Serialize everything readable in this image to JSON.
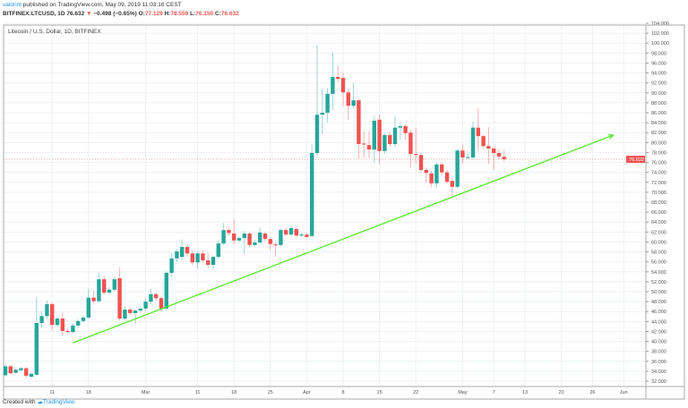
{
  "header": {
    "author": "valdrint",
    "published": "published on TradingView.com, May 09, 2019 11:03:16 CEST",
    "symbol": "BITFINEX:LTCUSD, 1D",
    "last": "76.632",
    "change": "−0.498 (−0.65%)",
    "o_label": "O:",
    "o": "77.129",
    "h_label": "H:",
    "h": "78.559",
    "l_label": "L:",
    "l": "76.150",
    "c_label": "C:",
    "c": "76.632"
  },
  "legend": "Litecoin / U.S. Dollar, 1D, BITFINEX",
  "footer": {
    "created": "Created with",
    "brand": "TradingView"
  },
  "colors": {
    "up": "#26a69a",
    "down": "#ef5350",
    "trendline": "#55e82a",
    "grid": "#eef1f6",
    "price_badge": "#ef5350"
  },
  "chart_data": {
    "type": "candlestick",
    "title": "Litecoin / U.S. Dollar, 1D, BITFINEX",
    "ylim": [
      32,
      104
    ],
    "ytick_step": 2,
    "grid": true,
    "last_price_label": "76.632",
    "xticks": [
      [
        "2019-02-11",
        "11"
      ],
      [
        "2019-02-18",
        "18"
      ],
      [
        "2019-03-01",
        "Mar"
      ],
      [
        "2019-03-11",
        "11"
      ],
      [
        "2019-03-18",
        "18"
      ],
      [
        "2019-03-25",
        "25"
      ],
      [
        "2019-04-01",
        "Apr"
      ],
      [
        "2019-04-08",
        "8"
      ],
      [
        "2019-04-15",
        "15"
      ],
      [
        "2019-04-22",
        "22"
      ],
      [
        "2019-05-01",
        "May"
      ],
      [
        "2019-05-07",
        "7"
      ],
      [
        "2019-05-13",
        "13"
      ],
      [
        "2019-05-20",
        "20"
      ],
      [
        "2019-05-26",
        "26"
      ],
      [
        "2019-06-01",
        "Jun"
      ]
    ],
    "xlim": [
      "2019-02-02",
      "2019-06-05"
    ],
    "trendline": {
      "start": [
        "2019-02-15",
        39.7
      ],
      "end": [
        "2019-05-30",
        81.5
      ],
      "arrow": true
    },
    "candles_fields": [
      "date",
      "open",
      "high",
      "low",
      "close"
    ],
    "candles": [
      [
        "2019-02-02",
        33.2,
        35.4,
        33.0,
        35.0
      ],
      [
        "2019-02-03",
        35.0,
        35.3,
        33.4,
        33.6
      ],
      [
        "2019-02-04",
        33.7,
        34.5,
        33.5,
        34.3
      ],
      [
        "2019-02-05",
        34.2,
        34.8,
        34.0,
        34.6
      ],
      [
        "2019-02-06",
        34.6,
        34.8,
        32.6,
        33.1
      ],
      [
        "2019-02-07",
        32.9,
        33.7,
        32.7,
        33.5
      ],
      [
        "2019-02-08",
        33.3,
        48.9,
        33.1,
        43.7
      ],
      [
        "2019-02-09",
        43.7,
        46.0,
        42.8,
        45.1
      ],
      [
        "2019-02-10",
        45.1,
        48.2,
        44.6,
        47.5
      ],
      [
        "2019-02-11",
        47.5,
        47.8,
        42.2,
        43.3
      ],
      [
        "2019-02-12",
        43.3,
        45.0,
        42.9,
        44.6
      ],
      [
        "2019-02-13",
        44.6,
        45.8,
        41.2,
        42.1
      ],
      [
        "2019-02-14",
        42.1,
        42.6,
        41.5,
        41.9
      ],
      [
        "2019-02-15",
        41.9,
        43.6,
        41.6,
        43.2
      ],
      [
        "2019-02-16",
        43.2,
        44.5,
        42.9,
        44.1
      ],
      [
        "2019-02-17",
        44.1,
        45.1,
        43.8,
        44.8
      ],
      [
        "2019-02-18",
        44.8,
        50.6,
        44.5,
        48.8
      ],
      [
        "2019-02-19",
        48.8,
        50.2,
        47.6,
        48.1
      ],
      [
        "2019-02-20",
        48.1,
        53.8,
        47.8,
        52.5
      ],
      [
        "2019-02-21",
        52.5,
        53.2,
        49.4,
        49.8
      ],
      [
        "2019-02-22",
        49.8,
        50.9,
        49.4,
        50.4
      ],
      [
        "2019-02-23",
        50.4,
        53.0,
        50.1,
        52.5
      ],
      [
        "2019-02-24",
        52.7,
        54.9,
        44.2,
        44.6
      ],
      [
        "2019-02-25",
        44.6,
        47.0,
        44.2,
        46.4
      ],
      [
        "2019-02-26",
        46.4,
        46.8,
        45.3,
        45.7
      ],
      [
        "2019-02-27",
        45.7,
        46.5,
        43.6,
        46.2
      ],
      [
        "2019-02-28",
        46.2,
        47.0,
        45.8,
        46.6
      ],
      [
        "2019-03-01",
        46.6,
        48.6,
        46.2,
        48.0
      ],
      [
        "2019-03-02",
        48.0,
        50.6,
        47.5,
        49.5
      ],
      [
        "2019-03-03",
        49.5,
        49.9,
        48.2,
        48.7
      ],
      [
        "2019-03-04",
        48.7,
        49.0,
        46.0,
        46.6
      ],
      [
        "2019-03-05",
        46.6,
        54.2,
        46.3,
        53.8
      ],
      [
        "2019-03-06",
        53.8,
        57.6,
        53.0,
        56.7
      ],
      [
        "2019-03-07",
        56.7,
        58.6,
        56.0,
        58.1
      ],
      [
        "2019-03-08",
        57.0,
        60.5,
        56.4,
        59.0
      ],
      [
        "2019-03-09",
        59.0,
        59.6,
        57.2,
        57.7
      ],
      [
        "2019-03-10",
        57.7,
        58.3,
        55.4,
        55.9
      ],
      [
        "2019-03-11",
        55.9,
        58.2,
        54.6,
        57.7
      ],
      [
        "2019-03-12",
        57.7,
        58.4,
        55.8,
        56.3
      ],
      [
        "2019-03-13",
        56.3,
        57.8,
        54.8,
        55.4
      ],
      [
        "2019-03-14",
        55.4,
        57.3,
        54.6,
        57.0
      ],
      [
        "2019-03-15",
        57.0,
        60.3,
        56.7,
        59.7
      ],
      [
        "2019-03-16",
        59.7,
        63.8,
        59.4,
        62.4
      ],
      [
        "2019-03-17",
        62.4,
        62.8,
        61.3,
        61.8
      ],
      [
        "2019-03-18",
        61.7,
        64.6,
        59.6,
        60.3
      ],
      [
        "2019-03-19",
        60.3,
        61.2,
        60.0,
        60.8
      ],
      [
        "2019-03-20",
        60.8,
        62.2,
        57.6,
        61.7
      ],
      [
        "2019-03-21",
        61.7,
        62.0,
        58.9,
        59.4
      ],
      [
        "2019-03-22",
        59.4,
        60.4,
        59.1,
        59.9
      ],
      [
        "2019-03-23",
        59.9,
        62.9,
        59.6,
        61.9
      ],
      [
        "2019-03-24",
        61.7,
        62.0,
        60.2,
        60.6
      ],
      [
        "2019-03-25",
        60.6,
        60.9,
        58.3,
        59.6
      ],
      [
        "2019-03-26",
        59.5,
        60.0,
        57.1,
        59.4
      ],
      [
        "2019-03-27",
        59.4,
        62.7,
        59.1,
        62.4
      ],
      [
        "2019-03-28",
        62.4,
        62.9,
        61.2,
        61.5
      ],
      [
        "2019-03-29",
        61.5,
        63.4,
        61.2,
        62.8
      ],
      [
        "2019-03-30",
        62.6,
        63.1,
        61.0,
        61.3
      ],
      [
        "2019-03-31",
        61.3,
        61.8,
        61.0,
        61.5
      ],
      [
        "2019-04-01",
        61.5,
        61.8,
        60.8,
        61.0
      ],
      [
        "2019-04-02",
        61.2,
        79.6,
        61.0,
        77.9
      ],
      [
        "2019-04-03",
        77.9,
        99.7,
        77.5,
        85.6
      ],
      [
        "2019-04-04",
        85.6,
        90.9,
        81.7,
        86.0
      ],
      [
        "2019-04-05",
        86.0,
        91.0,
        84.0,
        89.8
      ],
      [
        "2019-04-06",
        89.8,
        98.2,
        86.5,
        93.2
      ],
      [
        "2019-04-07",
        93.2,
        95.4,
        92.2,
        92.8
      ],
      [
        "2019-04-08",
        93.0,
        94.0,
        87.3,
        90.1
      ],
      [
        "2019-04-09",
        90.1,
        90.7,
        84.5,
        87.4
      ],
      [
        "2019-04-10",
        87.4,
        92.0,
        87.0,
        88.5
      ],
      [
        "2019-04-11",
        88.5,
        88.8,
        76.8,
        79.7
      ],
      [
        "2019-04-12",
        79.8,
        82.3,
        77.0,
        79.6
      ],
      [
        "2019-04-13",
        79.5,
        82.3,
        76.9,
        78.6
      ],
      [
        "2019-04-14",
        78.6,
        85.4,
        76.0,
        84.4
      ],
      [
        "2019-04-15",
        84.6,
        85.6,
        75.6,
        78.3
      ],
      [
        "2019-04-16",
        78.3,
        81.9,
        77.7,
        81.5
      ],
      [
        "2019-04-17",
        81.5,
        82.0,
        79.2,
        79.7
      ],
      [
        "2019-04-18",
        79.7,
        85.4,
        79.1,
        83.0
      ],
      [
        "2019-04-19",
        83.0,
        84.0,
        80.5,
        83.3
      ],
      [
        "2019-04-20",
        83.3,
        83.8,
        80.5,
        81.9
      ],
      [
        "2019-04-21",
        82.0,
        82.5,
        75.0,
        77.7
      ],
      [
        "2019-04-22",
        77.7,
        83.0,
        75.8,
        77.5
      ],
      [
        "2019-04-23",
        77.5,
        78.0,
        74.0,
        74.5
      ],
      [
        "2019-04-24",
        74.5,
        75.0,
        72.0,
        73.9
      ],
      [
        "2019-04-25",
        73.8,
        74.3,
        71.0,
        71.8
      ],
      [
        "2019-04-26",
        71.8,
        76.0,
        71.0,
        75.6
      ],
      [
        "2019-04-27",
        75.6,
        76.0,
        73.4,
        74.0
      ],
      [
        "2019-04-28",
        74.0,
        74.5,
        71.8,
        72.1
      ],
      [
        "2019-04-29",
        72.3,
        72.8,
        69.1,
        71.1
      ],
      [
        "2019-04-30",
        71.1,
        78.6,
        70.8,
        78.4
      ],
      [
        "2019-05-01",
        78.4,
        79.6,
        75.8,
        77.0
      ],
      [
        "2019-05-02",
        77.0,
        77.8,
        76.6,
        77.1
      ],
      [
        "2019-05-03",
        77.0,
        84.2,
        76.5,
        83.0
      ],
      [
        "2019-05-04",
        83.0,
        86.9,
        78.3,
        81.3
      ],
      [
        "2019-05-05",
        81.3,
        81.6,
        78.8,
        79.3
      ],
      [
        "2019-05-06",
        79.3,
        83.1,
        75.7,
        78.8
      ],
      [
        "2019-05-07",
        78.8,
        79.2,
        74.5,
        77.9
      ],
      [
        "2019-05-08",
        77.9,
        78.7,
        76.6,
        77.2
      ],
      [
        "2019-05-09",
        77.129,
        78.559,
        76.15,
        76.632
      ]
    ]
  }
}
